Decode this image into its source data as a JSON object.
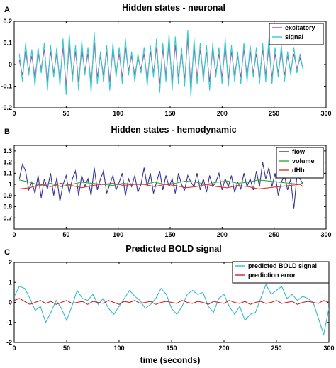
{
  "figure": {
    "xlabel": "time (seconds)"
  },
  "chart_data": [
    {
      "panel": "A",
      "type": "line",
      "title": "Hidden states - neuronal",
      "xlabel": "",
      "ylabel": "",
      "xlim": [
        0,
        300
      ],
      "ylim": [
        -0.2,
        0.2
      ],
      "xticks": [
        0,
        50,
        100,
        150,
        200,
        250,
        300
      ],
      "yticks": [
        -0.2,
        -0.1,
        0,
        0.1,
        0.2
      ],
      "yticklabels": [
        "-0.2",
        "-0.1",
        "0",
        "0.1",
        "0.2"
      ],
      "grid": false,
      "legend": "top-right",
      "series": [
        {
          "name": "excitatory",
          "color": "#cc3399",
          "x": [
            5,
            8,
            11,
            14,
            17,
            20,
            23,
            26,
            29,
            32,
            35,
            38,
            41,
            44,
            47,
            50,
            53,
            56,
            59,
            62,
            65,
            68,
            71,
            74,
            77,
            80,
            83,
            86,
            89,
            92,
            95,
            98,
            101,
            104,
            107,
            110,
            113,
            116,
            119,
            122,
            125,
            128,
            131,
            134,
            137,
            140,
            143,
            146,
            149,
            152,
            155,
            158,
            161,
            164,
            167,
            170,
            173,
            176,
            179,
            182,
            185,
            188,
            191,
            194,
            197,
            200,
            203,
            206,
            209,
            212,
            215,
            218,
            221,
            224,
            227,
            230,
            233,
            236,
            239,
            242,
            245,
            248,
            251,
            254,
            257,
            260,
            263,
            266,
            269,
            272,
            275,
            278
          ],
          "values": [
            0.02,
            -0.05,
            0.06,
            -0.03,
            0.04,
            -0.06,
            0.05,
            -0.02,
            0.07,
            -0.08,
            0.06,
            -0.04,
            0.05,
            -0.07,
            0.08,
            -0.1,
            0.09,
            -0.05,
            0.06,
            -0.08,
            0.07,
            -0.03,
            0.05,
            -0.09,
            0.1,
            -0.06,
            0.04,
            -0.05,
            0.06,
            -0.08,
            0.07,
            -0.04,
            0.05,
            -0.06,
            0.08,
            -0.03,
            0.04,
            -0.05,
            0.03,
            -0.02,
            0.05,
            -0.07,
            0.06,
            -0.04,
            0.08,
            -0.09,
            0.07,
            -0.05,
            0.1,
            -0.08,
            0.09,
            -0.06,
            0.05,
            -0.07,
            0.12,
            -0.1,
            0.08,
            -0.06,
            0.07,
            -0.05,
            0.06,
            -0.08,
            0.07,
            -0.04,
            0.05,
            -0.06,
            0.08,
            -0.07,
            0.06,
            -0.05,
            0.04,
            -0.06,
            0.07,
            -0.05,
            0.06,
            -0.04,
            0.05,
            -0.06,
            0.07,
            -0.05,
            0.08,
            -0.06,
            0.05,
            -0.04,
            0.06,
            -0.05,
            0.04,
            -0.03,
            0.05,
            -0.02,
            0.03,
            -0.02
          ]
        },
        {
          "name": "signal",
          "color": "#33cccc",
          "x": [
            5,
            8,
            11,
            14,
            17,
            20,
            23,
            26,
            29,
            32,
            35,
            38,
            41,
            44,
            47,
            50,
            53,
            56,
            59,
            62,
            65,
            68,
            71,
            74,
            77,
            80,
            83,
            86,
            89,
            92,
            95,
            98,
            101,
            104,
            107,
            110,
            113,
            116,
            119,
            122,
            125,
            128,
            131,
            134,
            137,
            140,
            143,
            146,
            149,
            152,
            155,
            158,
            161,
            164,
            167,
            170,
            173,
            176,
            179,
            182,
            185,
            188,
            191,
            194,
            197,
            200,
            203,
            206,
            209,
            212,
            215,
            218,
            221,
            224,
            227,
            230,
            233,
            236,
            239,
            242,
            245,
            248,
            251,
            254,
            257,
            260,
            263,
            266,
            269,
            272,
            275,
            278
          ],
          "values": [
            0.05,
            -0.08,
            0.1,
            -0.05,
            0.07,
            -0.1,
            0.08,
            -0.04,
            0.1,
            -0.12,
            0.09,
            -0.06,
            0.08,
            -0.1,
            0.12,
            -0.14,
            0.14,
            -0.08,
            0.09,
            -0.12,
            0.11,
            -0.05,
            0.08,
            -0.13,
            0.15,
            -0.09,
            0.06,
            -0.08,
            0.09,
            -0.12,
            0.1,
            -0.06,
            0.08,
            -0.09,
            0.12,
            -0.05,
            0.06,
            -0.08,
            0.05,
            -0.04,
            0.08,
            -0.1,
            0.09,
            -0.06,
            0.12,
            -0.13,
            0.1,
            -0.08,
            0.14,
            -0.12,
            0.13,
            -0.09,
            0.08,
            -0.1,
            0.16,
            -0.15,
            0.12,
            -0.09,
            0.1,
            -0.08,
            0.09,
            -0.12,
            0.1,
            -0.06,
            0.08,
            -0.09,
            0.12,
            -0.1,
            0.09,
            -0.08,
            0.06,
            -0.09,
            0.1,
            -0.08,
            0.09,
            -0.06,
            0.08,
            -0.09,
            0.1,
            -0.08,
            0.12,
            -0.09,
            0.08,
            -0.06,
            0.09,
            -0.08,
            0.06,
            -0.05,
            0.08,
            -0.04,
            0.05,
            -0.03
          ]
        }
      ]
    },
    {
      "panel": "B",
      "type": "line",
      "title": "Hidden states - hemodynamic",
      "xlabel": "",
      "ylabel": "",
      "xlim": [
        0,
        300
      ],
      "ylim": [
        0.6,
        1.35
      ],
      "xticks": [
        0,
        50,
        100,
        150,
        200,
        250,
        300
      ],
      "yticks": [
        0.7,
        0.8,
        0.9,
        1,
        1.1,
        1.2,
        1.3
      ],
      "yticklabels": [
        "0.7",
        "0.8",
        "0.9",
        "1",
        "1.1",
        "1.2",
        "1.3"
      ],
      "grid": false,
      "legend": "top-right",
      "series": [
        {
          "name": "flow",
          "color": "#333399",
          "x": [
            5,
            8,
            11,
            14,
            17,
            20,
            23,
            26,
            29,
            32,
            35,
            38,
            41,
            44,
            47,
            50,
            53,
            56,
            59,
            62,
            65,
            68,
            71,
            74,
            77,
            80,
            83,
            86,
            89,
            92,
            95,
            98,
            101,
            104,
            107,
            110,
            113,
            116,
            119,
            122,
            125,
            128,
            131,
            134,
            137,
            140,
            143,
            146,
            149,
            152,
            155,
            158,
            161,
            164,
            167,
            170,
            173,
            176,
            179,
            182,
            185,
            188,
            191,
            194,
            197,
            200,
            203,
            206,
            209,
            212,
            215,
            218,
            221,
            224,
            227,
            230,
            233,
            236,
            239,
            242,
            245,
            248,
            251,
            254,
            257,
            260,
            263,
            266,
            269,
            272,
            275,
            278
          ],
          "values": [
            1.05,
            1.18,
            1.12,
            0.95,
            1.02,
            0.92,
            1.08,
            0.88,
            1.05,
            0.96,
            1.1,
            0.9,
            1.06,
            0.85,
            1.0,
            1.08,
            0.92,
            1.05,
            1.12,
            0.9,
            1.08,
            0.98,
            1.05,
            0.9,
            1.15,
            0.95,
            1.05,
            1.12,
            0.92,
            1.0,
            1.08,
            0.95,
            1.02,
            1.1,
            0.9,
            1.05,
            0.98,
            1.08,
            0.93,
            1.0,
            1.15,
            0.98,
            1.1,
            0.92,
            1.02,
            1.12,
            0.95,
            1.08,
            0.98,
            1.05,
            0.92,
            1.1,
            1.0,
            0.95,
            1.08,
            1.02,
            0.98,
            1.1,
            0.95,
            1.05,
            0.93,
            1.08,
            0.98,
            1.02,
            1.1,
            0.95,
            1.05,
            0.98,
            1.08,
            0.93,
            1.02,
            0.96,
            1.1,
            0.98,
            1.05,
            0.95,
            1.12,
            0.98,
            1.2,
            1.05,
            1.15,
            0.98,
            1.1,
            0.9,
            1.02,
            1.08,
            0.95,
            1.05,
            0.78,
            1.08,
            1.05,
            1.0
          ]
        },
        {
          "name": "volume",
          "color": "#33aa33",
          "x": [
            5,
            15,
            25,
            35,
            45,
            55,
            65,
            75,
            85,
            95,
            105,
            115,
            125,
            135,
            145,
            155,
            165,
            175,
            185,
            195,
            205,
            215,
            225,
            235,
            245,
            255,
            265,
            275,
            278
          ],
          "values": [
            1.04,
            1.02,
            0.99,
            1.01,
            0.98,
            1.0,
            1.02,
            1.01,
            1.0,
            0.99,
            1.01,
            1.0,
            1.0,
            1.02,
            1.0,
            1.01,
            1.03,
            1.02,
            1.0,
            1.02,
            1.03,
            1.01,
            1.02,
            1.04,
            1.03,
            1.02,
            1.01,
            1.0,
            1.02
          ]
        },
        {
          "name": "dHb",
          "color": "#dd3333",
          "x": [
            5,
            15,
            25,
            35,
            45,
            55,
            65,
            75,
            85,
            95,
            105,
            115,
            125,
            135,
            145,
            155,
            165,
            175,
            185,
            195,
            205,
            215,
            225,
            235,
            245,
            255,
            265,
            275,
            278
          ],
          "values": [
            0.96,
            0.97,
            1.0,
            0.98,
            1.01,
            0.99,
            0.97,
            0.99,
            1.0,
            1.01,
            0.99,
            1.0,
            1.0,
            0.98,
            1.0,
            0.99,
            0.97,
            0.98,
            1.0,
            0.98,
            0.97,
            0.99,
            0.98,
            0.96,
            0.97,
            0.98,
            0.99,
            1.0,
            0.98
          ]
        }
      ]
    },
    {
      "panel": "C",
      "type": "line",
      "title": "Predicted BOLD signal",
      "xlabel": "time (seconds)",
      "ylabel": "",
      "xlim": [
        0,
        300
      ],
      "ylim": [
        -2,
        2
      ],
      "xticks": [
        0,
        50,
        100,
        150,
        200,
        250,
        300
      ],
      "yticks": [
        -2,
        -1,
        0,
        1,
        2
      ],
      "yticklabels": [
        "-2",
        "-1",
        "0",
        "1",
        "2"
      ],
      "grid": false,
      "legend": "top-right",
      "series": [
        {
          "name": "predicted BOLD signal",
          "color": "#33bbcc",
          "x": [
            0,
            5,
            10,
            15,
            20,
            25,
            30,
            35,
            40,
            45,
            50,
            55,
            60,
            65,
            70,
            75,
            80,
            85,
            90,
            95,
            100,
            105,
            110,
            115,
            120,
            125,
            130,
            135,
            140,
            145,
            150,
            155,
            160,
            165,
            170,
            175,
            180,
            185,
            190,
            195,
            200,
            205,
            210,
            215,
            220,
            225,
            230,
            235,
            240,
            245,
            250,
            255,
            260,
            265,
            270,
            275,
            280,
            285,
            290,
            295,
            300
          ],
          "values": [
            0.3,
            0.8,
            0.7,
            0.2,
            -0.4,
            -0.2,
            -1.0,
            -0.5,
            0.1,
            -0.3,
            -0.9,
            -0.2,
            0.6,
            0.2,
            0.1,
            0.4,
            -0.1,
            0.2,
            -0.3,
            -0.6,
            -0.2,
            0.2,
            0.6,
            0.3,
            0.1,
            -0.3,
            -0.1,
            0.2,
            0.7,
            0.4,
            -0.3,
            -0.6,
            -0.2,
            0.4,
            0.6,
            0.4,
            0.5,
            -0.2,
            -0.5,
            0.2,
            0.4,
            -0.2,
            -0.6,
            -0.2,
            -0.9,
            -0.6,
            -0.5,
            0.2,
            0.9,
            0.4,
            0.6,
            0.8,
            0.2,
            0.4,
            0.1,
            0.3,
            0.2,
            0.0,
            -0.8,
            -1.6,
            -0.3
          ]
        },
        {
          "name": "prediction error",
          "color": "#cc2222",
          "x": [
            0,
            5,
            10,
            15,
            20,
            25,
            30,
            35,
            40,
            45,
            50,
            55,
            60,
            65,
            70,
            75,
            80,
            85,
            90,
            95,
            100,
            105,
            110,
            115,
            120,
            125,
            130,
            135,
            140,
            145,
            150,
            155,
            160,
            165,
            170,
            175,
            180,
            185,
            190,
            195,
            200,
            205,
            210,
            215,
            220,
            225,
            230,
            235,
            240,
            245,
            250,
            255,
            260,
            265,
            270,
            275,
            280,
            285,
            290,
            295,
            300
          ],
          "values": [
            0.1,
            0.2,
            0.05,
            -0.1,
            0.0,
            0.1,
            -0.05,
            0.05,
            -0.1,
            0.0,
            0.1,
            -0.05,
            0.0,
            0.05,
            -0.1,
            0.05,
            0.0,
            -0.05,
            0.1,
            0.0,
            -0.1,
            0.05,
            0.0,
            0.1,
            -0.05,
            0.0,
            0.05,
            -0.1,
            0.0,
            0.05,
            0.0,
            -0.05,
            0.1,
            0.0,
            -0.05,
            0.05,
            0.0,
            -0.1,
            0.05,
            0.0,
            -0.05,
            0.1,
            0.0,
            -0.05,
            0.05,
            -0.1,
            0.0,
            0.05,
            -0.05,
            0.0,
            0.1,
            -0.05,
            0.0,
            0.05,
            -0.1,
            0.0,
            0.05,
            0.0,
            -0.05,
            0.1,
            0.0
          ]
        }
      ]
    }
  ]
}
